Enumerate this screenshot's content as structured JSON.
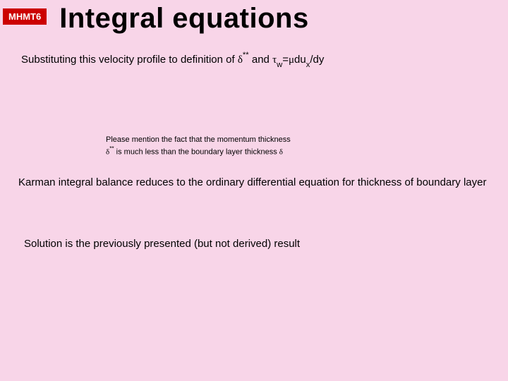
{
  "colors": {
    "background": "#f8d5e8",
    "badge_bg": "#cc0000",
    "badge_text": "#ffffff",
    "text": "#000000"
  },
  "badge": {
    "label": "MHMT6"
  },
  "title": "Integral equations",
  "para1_prefix": "Substituting this velocity profile to definition of ",
  "delta": "δ",
  "superscript_star": "**",
  "para1_mid": " and ",
  "tau": "τ",
  "sub_w": "w",
  "equals": "=",
  "mu": "μ",
  "du": "du",
  "sub_x": "x",
  "over_dy": "/dy",
  "note_line1": "Please mention the fact that the momentum thickness",
  "note_line2_prefix": "",
  "note_line2_suffix": " is much less than the boundary layer thickness ",
  "delta_double_prime": "δ",
  "double_prime": "**",
  "para2": "Karman integral balance reduces to the ordinary differential equation for thickness of boundary layer",
  "para3": "Solution is the previously presented (but not derived) result",
  "fonts": {
    "title_size": 40,
    "body_size": 15,
    "note_size": 11,
    "badge_size": 13
  }
}
